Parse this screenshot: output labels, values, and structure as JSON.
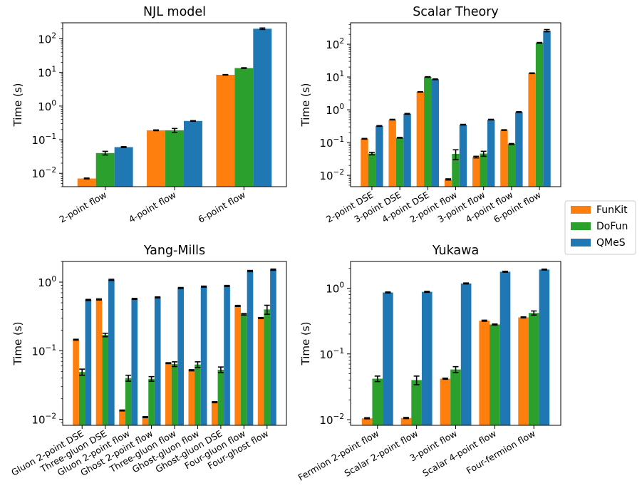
{
  "legend": {
    "placement": "right-center",
    "entries": [
      {
        "name": "FunKit",
        "color": "#ff7f0e"
      },
      {
        "name": "DoFun",
        "color": "#2ca02c"
      },
      {
        "name": "QMeS",
        "color": "#1f77b4"
      }
    ]
  },
  "chart_data": [
    {
      "type": "bar",
      "title": "NJL model",
      "ylabel": "Time (s)",
      "yscale": "log",
      "ylim": [
        0.004,
        300
      ],
      "yticks": [
        {
          "v": 0.01,
          "b": "10",
          "e": "−2"
        },
        {
          "v": 0.1,
          "b": "10",
          "e": "−1"
        },
        {
          "v": 1,
          "b": "10",
          "e": "0"
        },
        {
          "v": 10,
          "b": "10",
          "e": "1"
        },
        {
          "v": 100,
          "b": "10",
          "e": "2"
        }
      ],
      "categories": [
        "2-point flow",
        "4-point flow",
        "6-point flow"
      ],
      "series": [
        {
          "name": "FunKit",
          "values": [
            0.007,
            0.19,
            8.5
          ],
          "errors": [
            0.0002,
            0.005,
            0.15
          ]
        },
        {
          "name": "DoFun",
          "values": [
            0.04,
            0.19,
            13.5
          ],
          "errors": [
            0.005,
            0.025,
            0.3
          ]
        },
        {
          "name": "QMeS",
          "values": [
            0.06,
            0.36,
            200
          ],
          "errors": [
            0.002,
            0.008,
            10
          ]
        }
      ]
    },
    {
      "type": "bar",
      "title": "Scalar Theory",
      "ylabel": "Time (s)",
      "yscale": "log",
      "ylim": [
        0.0045,
        450
      ],
      "yticks": [
        {
          "v": 0.01,
          "b": "10",
          "e": "−2"
        },
        {
          "v": 0.1,
          "b": "10",
          "e": "−1"
        },
        {
          "v": 1,
          "b": "10",
          "e": "0"
        },
        {
          "v": 10,
          "b": "10",
          "e": "1"
        },
        {
          "v": 100,
          "b": "10",
          "e": "2"
        }
      ],
      "categories": [
        "2-point DSE",
        "3-point DSE",
        "4-point DSE",
        "2-point flow",
        "3-point flow",
        "4-point flow",
        "6-point flow"
      ],
      "series": [
        {
          "name": "FunKit",
          "values": [
            0.13,
            0.5,
            3.5,
            0.0075,
            0.036,
            0.24,
            13
          ],
          "errors": [
            0.003,
            0.01,
            0.05,
            0.0003,
            0.002,
            0.005,
            0.3
          ]
        },
        {
          "name": "DoFun",
          "values": [
            0.046,
            0.14,
            10,
            0.045,
            0.046,
            0.09,
            110
          ],
          "errors": [
            0.004,
            0.004,
            0.2,
            0.015,
            0.008,
            0.003,
            3
          ]
        },
        {
          "name": "QMeS",
          "values": [
            0.32,
            0.75,
            8.5,
            0.35,
            0.5,
            0.85,
            260
          ],
          "errors": [
            0.008,
            0.02,
            0.2,
            0.008,
            0.01,
            0.02,
            20
          ]
        }
      ]
    },
    {
      "type": "bar",
      "title": "Yang-Mills",
      "ylabel": "Time (s)",
      "yscale": "log",
      "ylim": [
        0.0082,
        2.0
      ],
      "yticks": [
        {
          "v": 0.01,
          "b": "10",
          "e": "−2"
        },
        {
          "v": 0.1,
          "b": "10",
          "e": "−1"
        },
        {
          "v": 1,
          "b": "10",
          "e": "0"
        }
      ],
      "categories": [
        "Gluon 2-point DSE",
        "Three-gluon DSE",
        "Gluon 2-point flow",
        "Ghost 2-point flow",
        "Three-gluon flow",
        "Ghost-gluon flow",
        "Ghost-gluon DSE",
        "Four-gluon flow",
        "Four-ghost flow"
      ],
      "series": [
        {
          "name": "FunKit",
          "values": [
            0.145,
            0.56,
            0.0135,
            0.0108,
            0.066,
            0.052,
            0.0178,
            0.45,
            0.3
          ],
          "errors": [
            0.002,
            0.01,
            0.0002,
            0.0002,
            0.001,
            0.001,
            0.0003,
            0.008,
            0.005
          ]
        },
        {
          "name": "DoFun",
          "values": [
            0.049,
            0.17,
            0.04,
            0.039,
            0.064,
            0.063,
            0.053,
            0.34,
            0.4
          ],
          "errors": [
            0.005,
            0.01,
            0.004,
            0.003,
            0.005,
            0.006,
            0.005,
            0.008,
            0.06
          ]
        },
        {
          "name": "QMeS",
          "values": [
            0.55,
            1.08,
            0.57,
            0.6,
            0.82,
            0.86,
            0.88,
            1.45,
            1.52
          ],
          "errors": [
            0.01,
            0.02,
            0.01,
            0.01,
            0.015,
            0.015,
            0.015,
            0.03,
            0.03
          ]
        }
      ]
    },
    {
      "type": "bar",
      "title": "Yukawa",
      "ylabel": "Time (s)",
      "yscale": "log",
      "ylim": [
        0.0082,
        2.55
      ],
      "yticks": [
        {
          "v": 0.01,
          "b": "10",
          "e": "−2"
        },
        {
          "v": 0.1,
          "b": "10",
          "e": "−1"
        },
        {
          "v": 1,
          "b": "10",
          "e": "0"
        }
      ],
      "categories": [
        "Fermion 2-point flow",
        "Scalar 2-point flow",
        "3-point flow",
        "Scalar 4-point flow",
        "Four-fermion flow"
      ],
      "series": [
        {
          "name": "FunKit",
          "values": [
            0.0105,
            0.0106,
            0.042,
            0.32,
            0.36
          ],
          "errors": [
            0.0002,
            0.0002,
            0.0008,
            0.006,
            0.006
          ]
        },
        {
          "name": "DoFun",
          "values": [
            0.042,
            0.04,
            0.058,
            0.28,
            0.42
          ],
          "errors": [
            0.004,
            0.006,
            0.006,
            0.005,
            0.03
          ]
        },
        {
          "name": "QMeS",
          "values": [
            0.86,
            0.88,
            1.18,
            1.78,
            1.92
          ],
          "errors": [
            0.015,
            0.015,
            0.02,
            0.03,
            0.03
          ]
        }
      ]
    }
  ]
}
